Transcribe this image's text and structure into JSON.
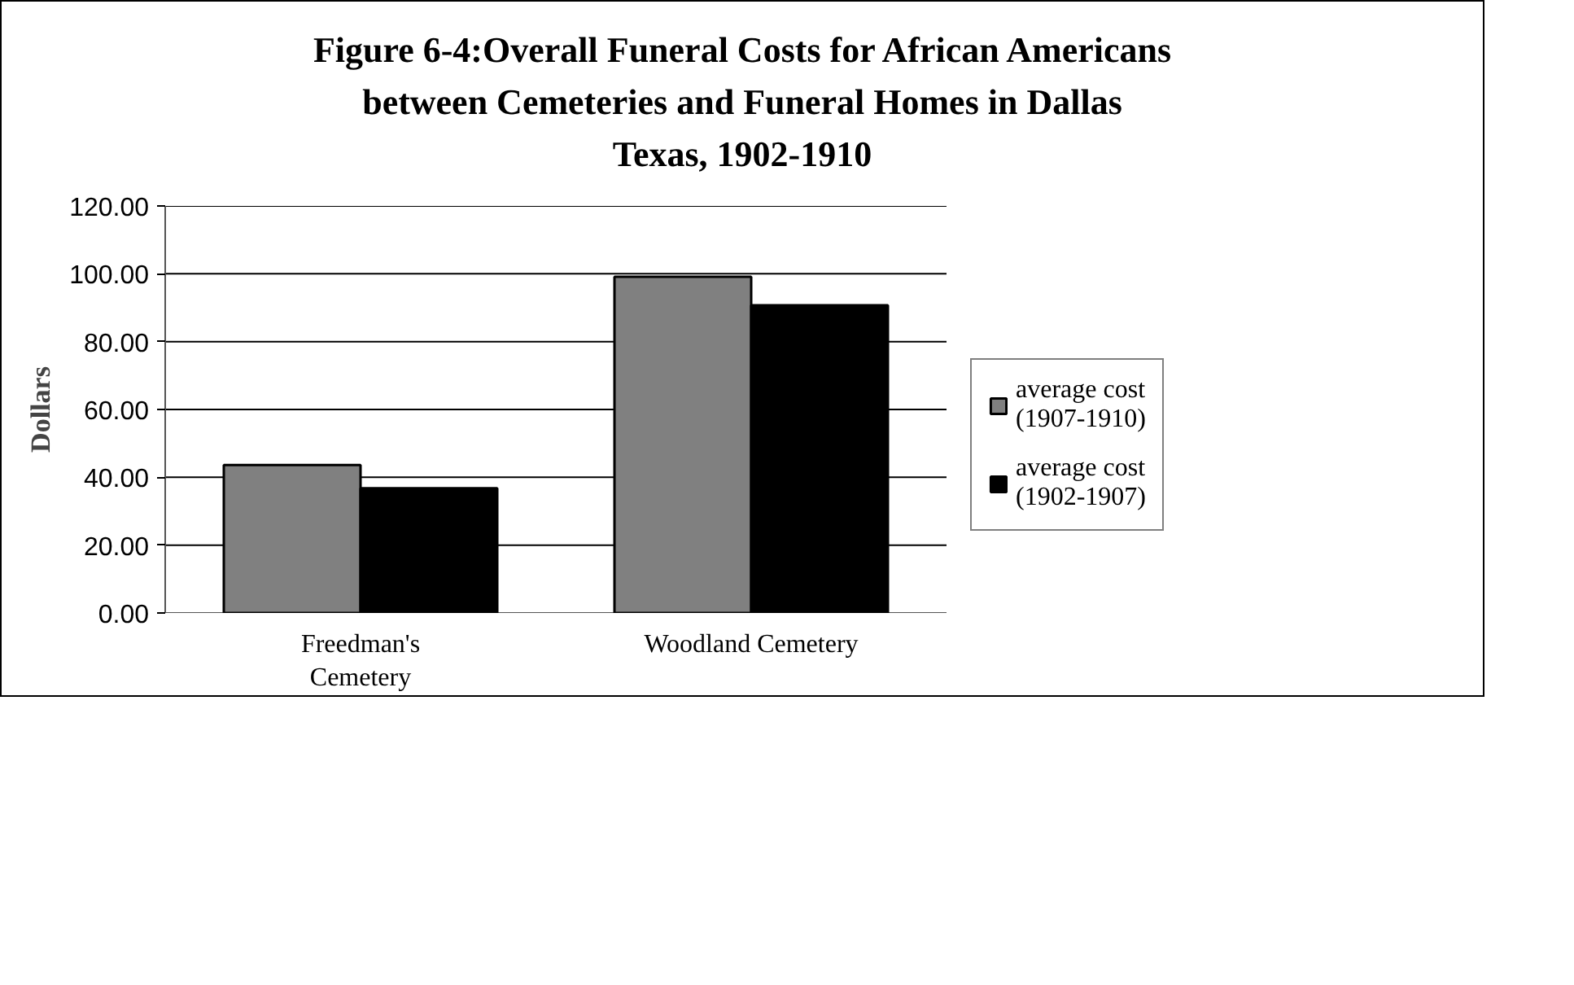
{
  "chart_data": {
    "type": "bar",
    "title": "Figure 6-4:Overall Funeral Costs for African Americans\nbetween Cemeteries and Funeral Homes in Dallas\nTexas, 1902-1910",
    "categories": [
      "Freedman's\nCemetery",
      "Woodland Cemetery"
    ],
    "series": [
      {
        "name": "average cost\n(1907-1910)",
        "color": "#808080",
        "values": [
          43.6,
          99.1
        ]
      },
      {
        "name": "average cost\n(1902-1907)",
        "color": "#000000",
        "values": [
          36.8,
          90.7
        ]
      }
    ],
    "ylabel": "Dollars",
    "ylim": [
      0,
      120
    ],
    "yticks": [
      {
        "value": 0,
        "label": "0.00"
      },
      {
        "value": 20,
        "label": "20.00"
      },
      {
        "value": 40,
        "label": "40.00"
      },
      {
        "value": 60,
        "label": "60.00"
      },
      {
        "value": 80,
        "label": "80.00"
      },
      {
        "value": 100,
        "label": "100.00"
      },
      {
        "value": 120,
        "label": "120.00"
      }
    ],
    "grid": "y",
    "legend": "right"
  }
}
